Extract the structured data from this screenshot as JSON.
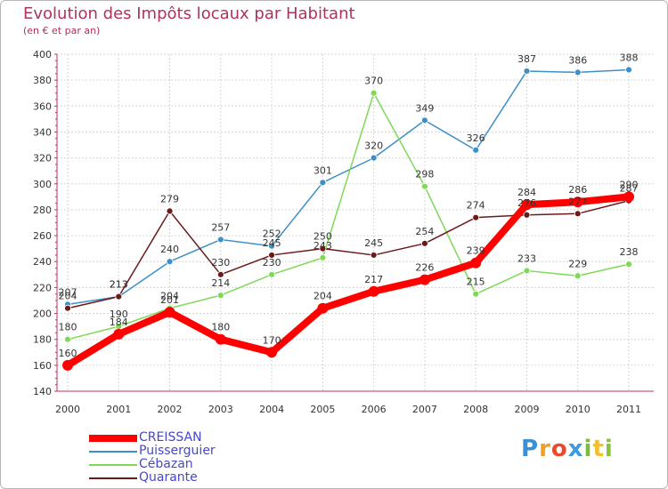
{
  "chart_data": {
    "type": "line",
    "title": "Evolution des Impôts locaux par Habitant",
    "subtitle": "(en € et par an)",
    "categories": [
      "2000",
      "2001",
      "2002",
      "2003",
      "2004",
      "2005",
      "2006",
      "2007",
      "2008",
      "2009",
      "2010",
      "2011"
    ],
    "ylim": [
      140,
      400
    ],
    "yticks": [
      140,
      160,
      180,
      200,
      220,
      240,
      260,
      280,
      300,
      320,
      340,
      360,
      380,
      400
    ],
    "grid": true,
    "legend_position": "bottom-left",
    "series": [
      {
        "name": "CREISSAN",
        "color": "#ff0000",
        "values": [
          160,
          184,
          201,
          180,
          170,
          204,
          217,
          226,
          239,
          284,
          286,
          290
        ]
      },
      {
        "name": "Puisserguier",
        "color": "#3d8fc8",
        "values": [
          207,
          213,
          240,
          257,
          252,
          301,
          320,
          349,
          326,
          387,
          386,
          388
        ]
      },
      {
        "name": "Cébazan",
        "color": "#7ed957",
        "values": [
          180,
          190,
          204,
          214,
          230,
          243,
          370,
          298,
          215,
          233,
          229,
          238
        ]
      },
      {
        "name": "Quarante",
        "color": "#6b1a1a",
        "values": [
          204,
          213,
          279,
          230,
          245,
          250,
          245,
          254,
          274,
          276,
          277,
          287
        ]
      }
    ]
  },
  "logo": {
    "text": "Proxiti"
  }
}
